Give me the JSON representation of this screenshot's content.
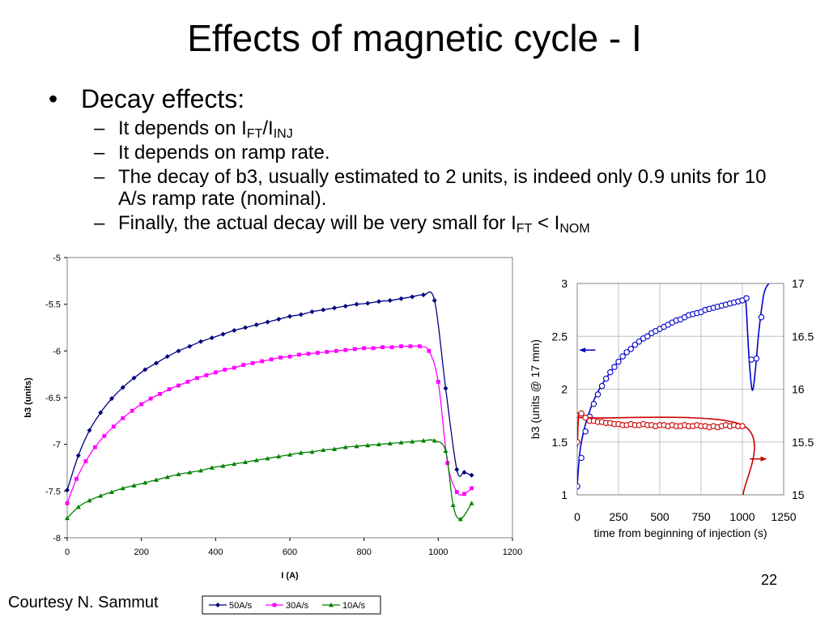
{
  "slide": {
    "title": "Effects of magnetic cycle - I",
    "bullet": "Decay effects:",
    "sub1_prefix": "It depends on I",
    "sub1_sub_a": "FT",
    "sub1_mid": "/I",
    "sub1_sub_b": "INJ",
    "sub2": "It depends on ramp rate.",
    "sub3": "The decay of b3, usually estimated to 2 units, is indeed only 0.9 units for 10 A/s ramp rate (nominal).",
    "sub4_prefix": "Finally, the actual decay will be very small for I",
    "sub4_sub_a": "FT",
    "sub4_mid": " < I",
    "sub4_sub_b": "NOM",
    "courtesy": "Courtesy N. Sammut",
    "page_number": "22"
  },
  "chart_data": [
    {
      "type": "line",
      "xlabel": "I (A)",
      "ylabel": "b3 (units)",
      "xlim": [
        0,
        1200
      ],
      "ylim": [
        -8,
        -5
      ],
      "xticks": [
        0,
        200,
        400,
        600,
        800,
        1000,
        1200
      ],
      "yticks": [
        -5,
        -5.5,
        -6,
        -6.5,
        -7,
        -7.5,
        -8
      ],
      "grid": false,
      "legend": "bottom",
      "series": [
        {
          "name": "50A/s",
          "color": "#000080",
          "marker": "diamond",
          "x": [
            0,
            30,
            60,
            90,
            120,
            150,
            180,
            210,
            240,
            270,
            300,
            330,
            360,
            390,
            420,
            450,
            480,
            510,
            540,
            570,
            600,
            630,
            660,
            690,
            720,
            750,
            780,
            810,
            840,
            870,
            900,
            930,
            960,
            990,
            1020,
            1050,
            1070,
            1090
          ],
          "y": [
            -7.49,
            -7.12,
            -6.85,
            -6.66,
            -6.51,
            -6.39,
            -6.29,
            -6.2,
            -6.13,
            -6.06,
            -6,
            -5.95,
            -5.9,
            -5.86,
            -5.82,
            -5.78,
            -5.75,
            -5.72,
            -5.69,
            -5.66,
            -5.63,
            -5.61,
            -5.58,
            -5.56,
            -5.54,
            -5.52,
            -5.5,
            -5.49,
            -5.47,
            -5.46,
            -5.44,
            -5.42,
            -5.4,
            -5.46,
            -6.4,
            -7.27,
            -7.3,
            -7.33
          ]
        },
        {
          "name": "30A/s",
          "color": "#FF00FF",
          "marker": "square",
          "x": [
            0,
            25,
            50,
            75,
            100,
            125,
            150,
            175,
            200,
            225,
            250,
            275,
            300,
            325,
            350,
            375,
            400,
            425,
            450,
            475,
            500,
            525,
            550,
            575,
            600,
            625,
            650,
            675,
            700,
            725,
            750,
            775,
            800,
            825,
            850,
            875,
            900,
            925,
            950,
            975,
            1000,
            1025,
            1050,
            1070,
            1090
          ],
          "y": [
            -7.63,
            -7.37,
            -7.18,
            -7.03,
            -6.91,
            -6.81,
            -6.72,
            -6.64,
            -6.57,
            -6.51,
            -6.46,
            -6.41,
            -6.37,
            -6.33,
            -6.29,
            -6.26,
            -6.23,
            -6.2,
            -6.18,
            -6.15,
            -6.13,
            -6.11,
            -6.09,
            -6.07,
            -6.06,
            -6.04,
            -6.03,
            -6.02,
            -6.01,
            -6,
            -5.99,
            -5.98,
            -5.97,
            -5.97,
            -5.96,
            -5.96,
            -5.95,
            -5.95,
            -5.95,
            -6,
            -6.33,
            -7.2,
            -7.51,
            -7.53,
            -7.47
          ]
        },
        {
          "name": "10A/s",
          "color": "#008000",
          "marker": "triangle",
          "x": [
            0,
            30,
            60,
            90,
            120,
            150,
            180,
            210,
            240,
            270,
            300,
            330,
            360,
            390,
            420,
            450,
            480,
            510,
            540,
            570,
            600,
            630,
            660,
            690,
            720,
            750,
            780,
            810,
            840,
            870,
            900,
            930,
            960,
            990,
            1020,
            1040,
            1060,
            1090
          ],
          "y": [
            -7.79,
            -7.67,
            -7.6,
            -7.55,
            -7.51,
            -7.47,
            -7.44,
            -7.41,
            -7.38,
            -7.35,
            -7.32,
            -7.3,
            -7.28,
            -7.25,
            -7.23,
            -7.21,
            -7.19,
            -7.17,
            -7.15,
            -7.13,
            -7.11,
            -7.09,
            -7.08,
            -7.06,
            -7.05,
            -7.03,
            -7.02,
            -7.01,
            -7,
            -6.99,
            -6.98,
            -6.97,
            -6.96,
            -6.96,
            -7.07,
            -7.65,
            -7.8,
            -7.63
          ]
        }
      ]
    },
    {
      "type": "scatter",
      "xlabel": "time from beginning of injection (s)",
      "ylabel": "b3 (units @ 17 mm)",
      "xlim": [
        0,
        1250
      ],
      "ylim": [
        1,
        3
      ],
      "y2lim": [
        15,
        17
      ],
      "xticks": [
        0,
        250,
        500,
        750,
        1000,
        1250
      ],
      "yticks": [
        1,
        1.5,
        2,
        2.5,
        3
      ],
      "y2ticks": [
        15,
        15.5,
        16,
        16.5,
        17
      ],
      "grid": true,
      "series": [
        {
          "axis": "left",
          "color": "#0000CC",
          "marker": "circle",
          "x": [
            0,
            25,
            50,
            75,
            100,
            125,
            150,
            175,
            200,
            225,
            250,
            275,
            300,
            325,
            350,
            375,
            400,
            425,
            450,
            475,
            500,
            525,
            550,
            575,
            600,
            625,
            650,
            675,
            700,
            725,
            750,
            775,
            800,
            825,
            850,
            875,
            900,
            925,
            950,
            975,
            1000,
            1025,
            1055,
            1085,
            1115
          ],
          "y": [
            1.08,
            1.35,
            1.6,
            1.74,
            1.86,
            1.95,
            2.03,
            2.1,
            2.16,
            2.21,
            2.26,
            2.31,
            2.35,
            2.38,
            2.42,
            2.45,
            2.48,
            2.5,
            2.53,
            2.55,
            2.57,
            2.59,
            2.61,
            2.63,
            2.65,
            2.66,
            2.68,
            2.7,
            2.71,
            2.72,
            2.73,
            2.75,
            2.76,
            2.77,
            2.78,
            2.79,
            2.8,
            2.81,
            2.82,
            2.83,
            2.84,
            2.86,
            2.28,
            2.29,
            2.68
          ],
          "line_x": [
            0,
            20,
            60,
            120,
            200,
            300,
            400,
            500,
            600,
            700,
            800,
            900,
            1000,
            1020,
            1040,
            1060,
            1080,
            1100,
            1130,
            1160
          ],
          "line_y": [
            1.1,
            1.45,
            1.72,
            1.96,
            2.16,
            2.35,
            2.48,
            2.57,
            2.65,
            2.71,
            2.76,
            2.8,
            2.84,
            2.84,
            2.3,
            1.99,
            2.2,
            2.55,
            2.9,
            3.0
          ]
        },
        {
          "axis": "right",
          "color": "#CC0000",
          "marker": "circle",
          "x": [
            0,
            25,
            50,
            75,
            100,
            125,
            150,
            175,
            200,
            225,
            250,
            275,
            300,
            325,
            350,
            375,
            400,
            425,
            450,
            475,
            500,
            525,
            550,
            575,
            600,
            625,
            650,
            675,
            700,
            725,
            750,
            775,
            800,
            825,
            850,
            875,
            900,
            925,
            950,
            975,
            1000
          ],
          "y": [
            15.5,
            15.77,
            15.73,
            15.7,
            15.7,
            15.69,
            15.69,
            15.68,
            15.68,
            15.67,
            15.67,
            15.66,
            15.66,
            15.67,
            15.66,
            15.66,
            15.67,
            15.66,
            15.66,
            15.65,
            15.66,
            15.66,
            15.65,
            15.66,
            15.65,
            15.65,
            15.66,
            15.65,
            15.65,
            15.66,
            15.65,
            15.65,
            15.64,
            15.65,
            15.64,
            15.65,
            15.66,
            15.65,
            15.66,
            15.65,
            15.65
          ],
          "line_x": [
            0,
            10,
            30,
            1000,
            1005
          ],
          "line_y": [
            15.45,
            15.76,
            15.73,
            15.66,
            15.0
          ]
        }
      ]
    }
  ],
  "right_chart_arrows": {
    "left_color": "#0000CC",
    "right_color": "#CC0000"
  }
}
